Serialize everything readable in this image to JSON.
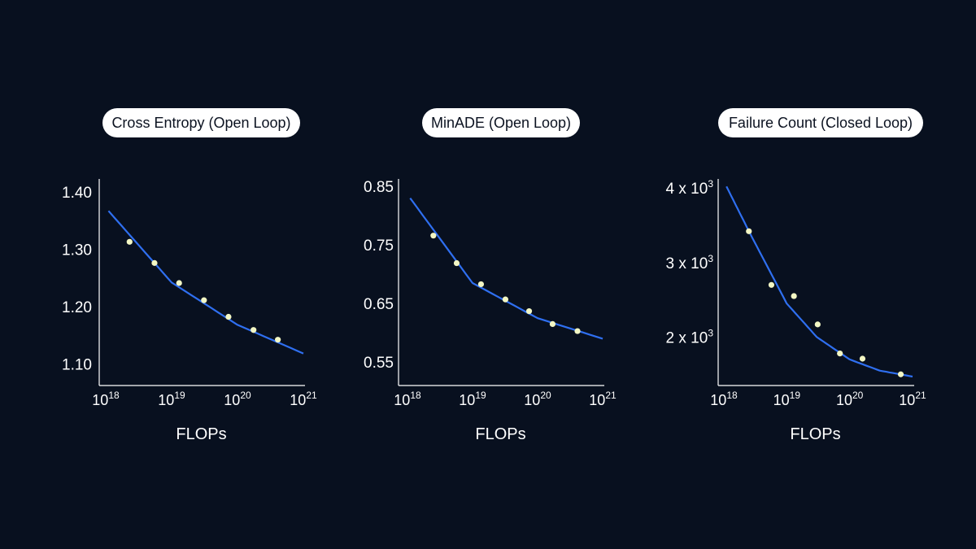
{
  "chart_data": [
    {
      "type": "scatter",
      "title": "Cross Entropy (Open Loop)",
      "xlabel": "FLOPs",
      "ylabel": "",
      "x_scale": "log",
      "xlim": [
        1e+18,
        1e+21
      ],
      "ylim": [
        1.062,
        1.42
      ],
      "x_ticks": [
        {
          "value": 1e+18,
          "base": "10",
          "exp": "18"
        },
        {
          "value": 1e+19,
          "base": "10",
          "exp": "19"
        },
        {
          "value": 1e+20,
          "base": "10",
          "exp": "20"
        },
        {
          "value": 1e+21,
          "base": "10",
          "exp": "21"
        }
      ],
      "y_ticks": [
        {
          "value": 1.4,
          "label": "1.40",
          "sup": ""
        },
        {
          "value": 1.3,
          "label": "1.30",
          "sup": ""
        },
        {
          "value": 1.2,
          "label": "1.20",
          "sup": ""
        },
        {
          "value": 1.1,
          "label": "1.10",
          "sup": ""
        }
      ],
      "series": [
        {
          "kind": "points",
          "color": "#f3f7c4",
          "x": [
            2.3e+18,
            5.5e+18,
            1.3e+19,
            3.1e+19,
            7.3e+19,
            1.75e+20,
            4.1e+20
          ],
          "y": [
            1.313,
            1.276,
            1.241,
            1.211,
            1.182,
            1.159,
            1.142
          ]
        },
        {
          "kind": "line",
          "color": "#2f6ff0",
          "x": [
            1.1e+18,
            1e+19,
            1e+20,
            1e+21
          ],
          "y": [
            1.367,
            1.242,
            1.168,
            1.118
          ]
        }
      ]
    },
    {
      "type": "scatter",
      "title": "MinADE (Open Loop)",
      "xlabel": "FLOPs",
      "ylabel": "",
      "x_scale": "log",
      "xlim": [
        1e+18,
        1e+21
      ],
      "ylim": [
        0.51,
        0.86
      ],
      "x_ticks": [
        {
          "value": 1e+18,
          "base": "10",
          "exp": "18"
        },
        {
          "value": 1e+19,
          "base": "10",
          "exp": "19"
        },
        {
          "value": 1e+20,
          "base": "10",
          "exp": "20"
        },
        {
          "value": 1e+21,
          "base": "10",
          "exp": "21"
        }
      ],
      "y_ticks": [
        {
          "value": 0.85,
          "label": "0.85",
          "sup": ""
        },
        {
          "value": 0.75,
          "label": "0.75",
          "sup": ""
        },
        {
          "value": 0.65,
          "label": "0.65",
          "sup": ""
        },
        {
          "value": 0.55,
          "label": "0.55",
          "sup": ""
        }
      ],
      "series": [
        {
          "kind": "points",
          "color": "#f3f7c4",
          "x": [
            2.5e+18,
            5.7e+18,
            1.35e+19,
            3.2e+19,
            7.4e+19,
            1.7e+20,
            4.1e+20
          ],
          "y": [
            0.766,
            0.719,
            0.683,
            0.657,
            0.637,
            0.615,
            0.603
          ]
        },
        {
          "kind": "line",
          "color": "#2f6ff0",
          "x": [
            1.1e+18,
            1e+19,
            1e+20,
            1e+21
          ],
          "y": [
            0.83,
            0.685,
            0.625,
            0.59
          ]
        }
      ]
    },
    {
      "type": "scatter",
      "title": "Failure Count (Closed Loop)",
      "xlabel": "FLOPs",
      "ylabel": "",
      "x_scale": "log",
      "xlim": [
        1e+18,
        1e+21
      ],
      "ylim": [
        1350,
        4100
      ],
      "x_ticks": [
        {
          "value": 1e+18,
          "base": "10",
          "exp": "18"
        },
        {
          "value": 1e+19,
          "base": "10",
          "exp": "19"
        },
        {
          "value": 1e+20,
          "base": "10",
          "exp": "20"
        },
        {
          "value": 1e+21,
          "base": "10",
          "exp": "21"
        }
      ],
      "y_ticks": [
        {
          "value": 4000,
          "label": "4 x 10",
          "sup": "3"
        },
        {
          "value": 3000,
          "label": "3 x 10",
          "sup": "3"
        },
        {
          "value": 2000,
          "label": "2 x 10",
          "sup": "3"
        },
        {
          "value": 1000,
          "label": "",
          "sup": ""
        }
      ],
      "series": [
        {
          "kind": "points",
          "color": "#f3f7c4",
          "x": [
            2.5e+18,
            5.7e+18,
            1.3e+19,
            3.1e+19,
            7e+19,
            1.6e+20,
            6.5e+20
          ],
          "y": [
            3420,
            2700,
            2550,
            2170,
            1780,
            1710,
            1500
          ]
        },
        {
          "kind": "line",
          "color": "#2f6ff0",
          "x": [
            1.1e+18,
            2.5e+18,
            1e+19,
            3e+19,
            1e+20,
            3e+20,
            1e+21
          ],
          "y": [
            4020,
            3420,
            2450,
            2000,
            1700,
            1550,
            1470
          ]
        }
      ]
    }
  ]
}
